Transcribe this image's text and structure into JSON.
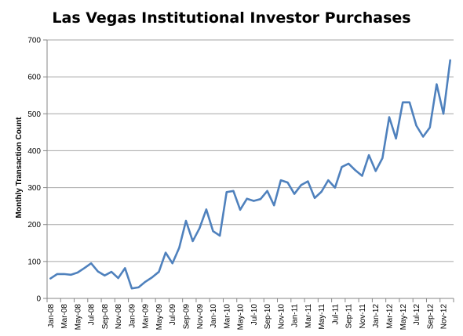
{
  "chart_data": {
    "type": "line",
    "title": "Las Vegas Institutional Investor Purchases",
    "xlabel": "",
    "ylabel": "Monthly Transaction Count",
    "ylim": [
      0,
      700
    ],
    "yticks": [
      0,
      100,
      200,
      300,
      400,
      500,
      600,
      700
    ],
    "grid": true,
    "legend": "none",
    "x": [
      "Jan-08",
      "Feb-08",
      "Mar-08",
      "Apr-08",
      "May-08",
      "Jun-08",
      "Jul-08",
      "Aug-08",
      "Sep-08",
      "Oct-08",
      "Nov-08",
      "Dec-08",
      "Jan-09",
      "Feb-09",
      "Mar-09",
      "Apr-09",
      "May-09",
      "Jun-09",
      "Jul-09",
      "Aug-09",
      "Sep-09",
      "Oct-09",
      "Nov-09",
      "Dec-09",
      "Jan-10",
      "Feb-10",
      "Mar-10",
      "Apr-10",
      "May-10",
      "Jun-10",
      "Jul-10",
      "Aug-10",
      "Sep-10",
      "Oct-10",
      "Nov-10",
      "Dec-10",
      "Jan-11",
      "Feb-11",
      "Mar-11",
      "Apr-11",
      "May-11",
      "Jun-11",
      "Jul-11",
      "Aug-11",
      "Sep-11",
      "Oct-11",
      "Nov-11",
      "Dec-11",
      "Jan-12",
      "Feb-12",
      "Mar-12",
      "Apr-12",
      "May-12",
      "Jun-12",
      "Jul-12",
      "Aug-12",
      "Sep-12",
      "Oct-12",
      "Nov-12",
      "Dec-12"
    ],
    "xtick_labels": [
      "Jan-08",
      "Mar-08",
      "May-08",
      "Jul-08",
      "Sep-08",
      "Nov-08",
      "Jan-09",
      "Mar-09",
      "May-09",
      "Jul-09",
      "Sep-09",
      "Nov-09",
      "Jan-10",
      "Mar-10",
      "May-10",
      "Jul-10",
      "Sep-10",
      "Nov-10",
      "Jan-11",
      "Mar-11",
      "May-11",
      "Jul-11",
      "Sep-11",
      "Nov-11",
      "Jan-12",
      "Mar-12",
      "May-12",
      "Jul-12",
      "Sep-12",
      "Nov-12"
    ],
    "series": [
      {
        "values": [
          54,
          66,
          66,
          64,
          70,
          82,
          95,
          73,
          62,
          72,
          55,
          82,
          27,
          30,
          45,
          57,
          72,
          124,
          95,
          137,
          210,
          155,
          190,
          241,
          182,
          170,
          288,
          291,
          240,
          270,
          264,
          269,
          291,
          252,
          320,
          314,
          283,
          307,
          317,
          272,
          289,
          320,
          300,
          356,
          365,
          347,
          332,
          388,
          345,
          380,
          491,
          433,
          531,
          531,
          468,
          438,
          463,
          580,
          500,
          645
        ],
        "color": "#4f81bd"
      }
    ],
    "colors": {
      "line": "#4f81bd",
      "grid": "#a6a6a6",
      "axis": "#868686"
    }
  }
}
